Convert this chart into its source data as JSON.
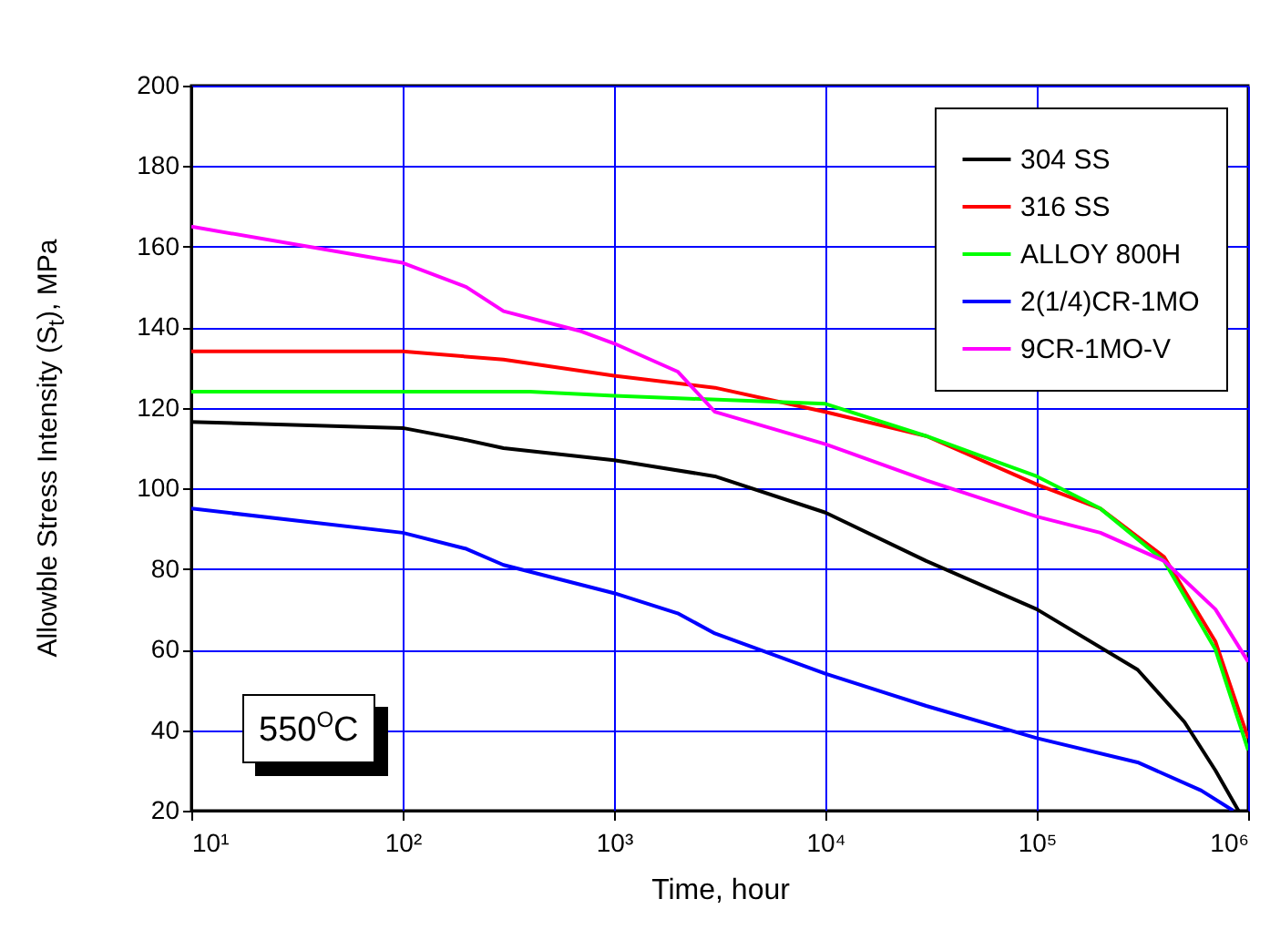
{
  "chart_data": {
    "type": "line",
    "xlabel": "Time, hour",
    "ylabel": "Allowble  Stress Intensity (S$_{t}$), MPa",
    "log": "x",
    "grid": true,
    "legend": "top right",
    "line_style": "solid",
    "marker": "none",
    "xlim": [
      10,
      1000000
    ],
    "xticks": [
      {
        "value": 10,
        "label": "10¹"
      },
      {
        "value": 100,
        "label": "10²"
      },
      {
        "value": 1000,
        "label": "10³"
      },
      {
        "value": 10000,
        "label": "10⁴"
      },
      {
        "value": 100000,
        "label": "10⁵"
      },
      {
        "value": 1000000,
        "label": "10⁶"
      }
    ],
    "ylim": [
      20,
      200
    ],
    "yticks": [
      20,
      40,
      60,
      80,
      100,
      120,
      140,
      160,
      180,
      200
    ],
    "annotations": [
      "550$^{O}$C"
    ],
    "series": [
      {
        "name": "304 SS",
        "color": "#000000",
        "x": [
          10,
          100,
          200,
          300,
          1000,
          3000,
          10000,
          30000,
          100000,
          300000,
          500000,
          700000,
          900000
        ],
        "values": [
          116.5,
          115,
          112,
          110,
          107,
          103,
          94,
          82,
          70,
          55,
          42,
          30,
          20
        ]
      },
      {
        "name": "316 SS",
        "color": "#ff0000",
        "x": [
          10,
          100,
          300,
          1000,
          3000,
          10000,
          30000,
          100000,
          200000,
          400000,
          700000,
          1000000
        ],
        "values": [
          134,
          134,
          132,
          128,
          125,
          119,
          113,
          101,
          95,
          83,
          62,
          38
        ]
      },
      {
        "name": "ALLOY 800H",
        "color": "#00ff00",
        "x": [
          10,
          400,
          1000,
          10000,
          30000,
          100000,
          200000,
          400000,
          700000,
          1000000
        ],
        "values": [
          124,
          124,
          123,
          121,
          113,
          103,
          95,
          82,
          60,
          35
        ]
      },
      {
        "name": "2(1/4)CR-1MO",
        "color": "#0000ff",
        "x": [
          10,
          100,
          200,
          300,
          1000,
          2000,
          3000,
          10000,
          30000,
          100000,
          300000,
          600000,
          850000
        ],
        "values": [
          95,
          89,
          85,
          81,
          74,
          69,
          64,
          54,
          46,
          38,
          32,
          25,
          20
        ]
      },
      {
        "name": "9CR-1MO-V",
        "color": "#ff00ff",
        "x": [
          10,
          100,
          200,
          300,
          700,
          1000,
          2000,
          3000,
          10000,
          30000,
          100000,
          200000,
          400000,
          700000,
          1000000
        ],
        "values": [
          165,
          156,
          150,
          144,
          139,
          136,
          129,
          119,
          111,
          102,
          93,
          89,
          82,
          70,
          57
        ]
      }
    ]
  }
}
